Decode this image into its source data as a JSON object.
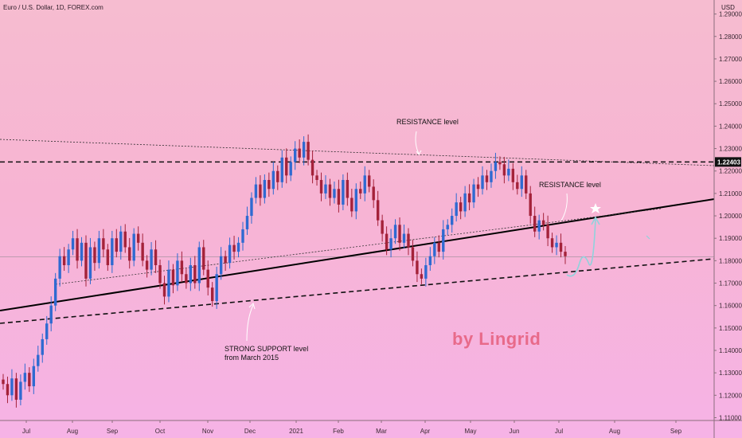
{
  "header": {
    "symbol": "Euro / U.S. Dollar, 1D, FOREX.com",
    "currency": "USD"
  },
  "chart_data": {
    "type": "candlestick",
    "ylim": [
      1.10875,
      1.29625
    ],
    "y_ticks": [
      "1.11000",
      "1.12000",
      "1.13000",
      "1.14000",
      "1.15000",
      "1.16000",
      "1.17000",
      "1.18000",
      "1.19000",
      "1.20000",
      "1.21000",
      "1.22000",
      "1.23000",
      "1.24000",
      "1.25000",
      "1.26000",
      "1.27000",
      "1.28000",
      "1.29000"
    ],
    "x_ticks": [
      "Jul",
      "Aug",
      "Sep",
      "Oct",
      "Nov",
      "Dec",
      "2021",
      "Feb",
      "Mar",
      "Apr",
      "May",
      "Jun",
      "Jul",
      "Aug",
      "Sep"
    ],
    "price_label": "1.22403",
    "price_level": 1.22403,
    "current_price": 1.1818,
    "closes": [
      1.125,
      1.12,
      1.1275,
      1.118,
      1.126,
      1.13,
      1.124,
      1.133,
      1.138,
      1.145,
      1.152,
      1.16,
      1.172,
      1.182,
      1.178,
      1.185,
      1.19,
      1.18,
      1.188,
      1.172,
      1.186,
      1.179,
      1.19,
      1.185,
      1.178,
      1.19,
      1.184,
      1.193,
      1.186,
      1.18,
      1.192,
      1.188,
      1.18,
      1.176,
      1.185,
      1.178,
      1.17,
      1.164,
      1.176,
      1.169,
      1.18,
      1.174,
      1.17,
      1.178,
      1.17,
      1.186,
      1.176,
      1.168,
      1.162,
      1.174,
      1.182,
      1.179,
      1.187,
      1.184,
      1.188,
      1.194,
      1.2,
      1.208,
      1.214,
      1.208,
      1.216,
      1.212,
      1.22,
      1.215,
      1.226,
      1.218,
      1.224,
      1.23,
      1.226,
      1.233,
      1.225,
      1.218,
      1.216,
      1.21,
      1.214,
      1.208,
      1.212,
      1.205,
      1.216,
      1.208,
      1.202,
      1.212,
      1.21,
      1.218,
      1.213,
      1.207,
      1.198,
      1.192,
      1.185,
      1.19,
      1.196,
      1.188,
      1.192,
      1.186,
      1.18,
      1.174,
      1.172,
      1.178,
      1.182,
      1.188,
      1.184,
      1.194,
      1.196,
      1.2,
      1.206,
      1.202,
      1.21,
      1.206,
      1.214,
      1.212,
      1.218,
      1.215,
      1.22,
      1.224,
      1.223,
      1.218,
      1.221,
      1.215,
      1.212,
      1.218,
      1.21,
      1.2,
      1.193,
      1.198,
      1.196,
      1.19,
      1.186,
      1.188,
      1.184,
      1.182
    ],
    "annotations": [
      "RESISTANCE level",
      "RESISTANCE level",
      "STRONG SUPPORT level",
      "from March 2015"
    ],
    "watermark": "by Lingrid",
    "colors": {
      "up": "#2f6ad1",
      "down": "#a4223a",
      "line": "#000000",
      "arrow": "#8fd3dc"
    }
  }
}
